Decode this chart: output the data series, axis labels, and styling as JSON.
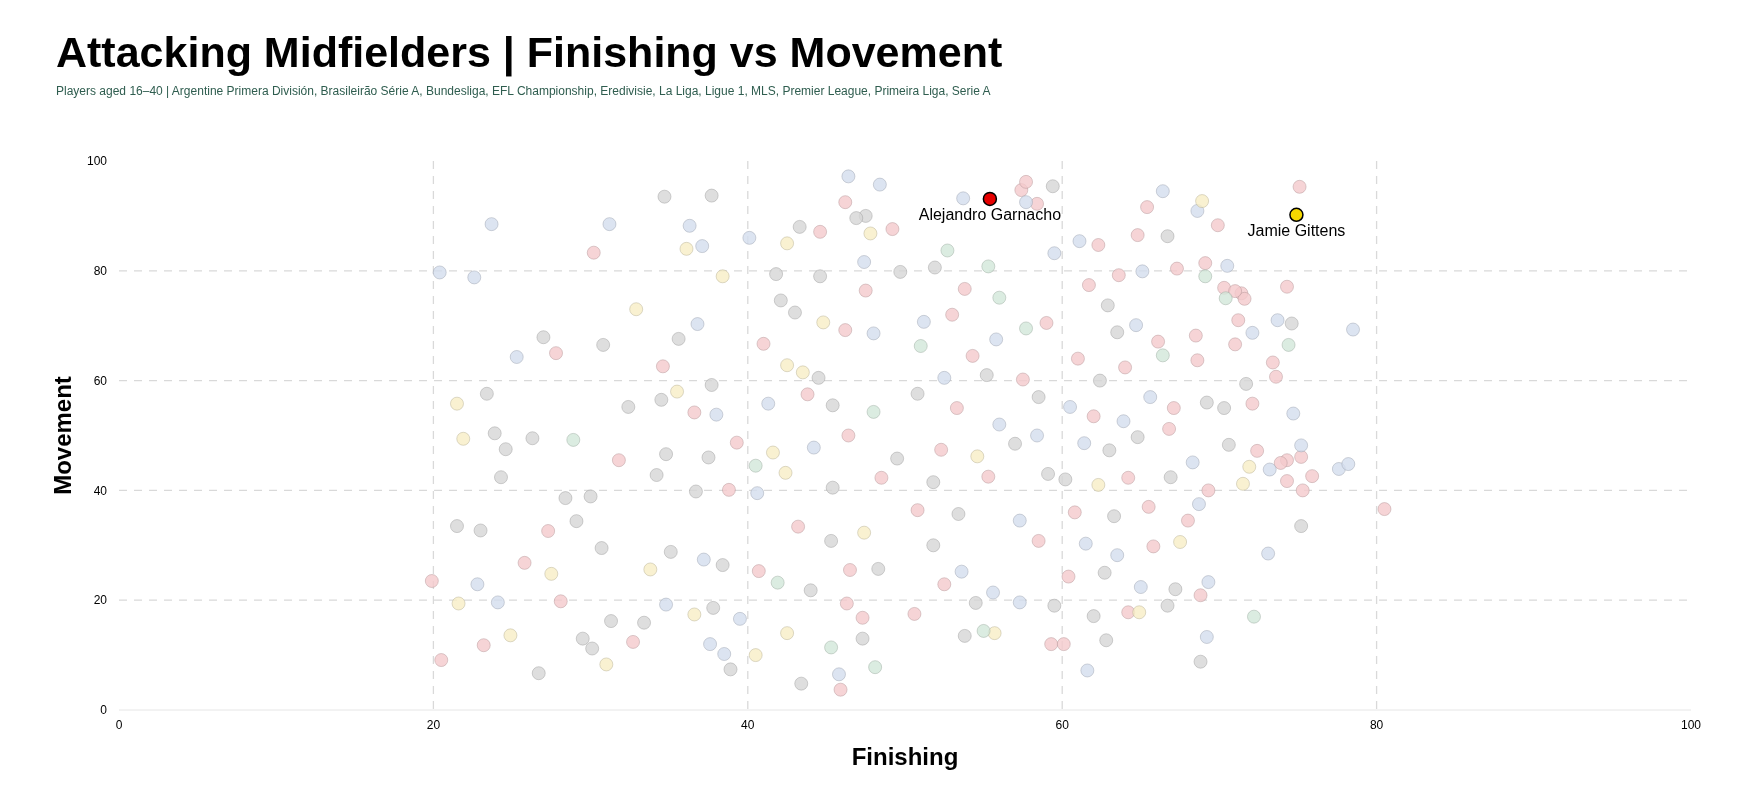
{
  "chart_data": {
    "type": "scatter",
    "title": "Attacking Midfielders | Finishing vs Movement",
    "subtitle": "Players aged 16–40 | Argentine Primera División, Brasileirão Série A, Bundesliga, EFL Championship, Eredivisie, La Liga, Ligue 1, MLS, Premier League, Primeira Liga, Serie A",
    "xlabel": "Finishing",
    "ylabel": "Movement",
    "xlim": [
      0,
      100
    ],
    "ylim": [
      0,
      100
    ],
    "xticks": [
      0,
      20,
      40,
      60,
      80,
      100
    ],
    "yticks": [
      0,
      20,
      40,
      60,
      80,
      100
    ],
    "grid": true,
    "marker": "circle",
    "series": [
      {
        "color": "#f4c9cc",
        "x": [
          27.8,
          19.9,
          20.5,
          23.2,
          28.1,
          25.8,
          27.3,
          30.2,
          31.8,
          32.7,
          34.6,
          36.6,
          39.3,
          38.8,
          44.6,
          46.2,
          49.2,
          41,
          46.2,
          47.5,
          43.8,
          46.4,
          48.5,
          43.2,
          46.5,
          40.7,
          46.3,
          45.9,
          47.3,
          57.4,
          57.7,
          58.4,
          53.8,
          53,
          59,
          54.3,
          57.5,
          53.3,
          52.3,
          55.3,
          50.8,
          58.5,
          52.5,
          50.6,
          59.3,
          62.3,
          64.8,
          65.4,
          63.6,
          61.7,
          67.3,
          70.3,
          66.1,
          68.5,
          61,
          64,
          68.6,
          62,
          67.1,
          66.8,
          64.2,
          69.3,
          60.8,
          65.5,
          68,
          65.8,
          60.4,
          64.2,
          68.8,
          60.1,
          75.1,
          69.9,
          74.3,
          71.4,
          71.6,
          71.2,
          71,
          69.1,
          71,
          73.4,
          73.6,
          72.1,
          72.4,
          74.3,
          75.2,
          73.9,
          74.3,
          75.9,
          80.5,
          75.3
        ],
        "values": [
          65,
          23.5,
          9.1,
          11.8,
          19.8,
          26.8,
          32.6,
          83.3,
          45.5,
          12.4,
          62.6,
          54.2,
          48.7,
          40.1,
          87.1,
          92.5,
          87.6,
          66.7,
          69.2,
          76.4,
          57.5,
          50,
          42.3,
          33.4,
          25.5,
          25.3,
          19.4,
          3.7,
          16.8,
          94.7,
          96.2,
          92.2,
          76.7,
          72,
          70.5,
          64.5,
          60.2,
          55,
          47.4,
          42.5,
          36.4,
          30.8,
          22.9,
          17.5,
          12,
          84.7,
          86.5,
          91.6,
          79.2,
          77.4,
          80.4,
          76.9,
          67.1,
          68.2,
          64,
          62.4,
          63.7,
          53.5,
          55,
          51.2,
          42.3,
          40,
          36,
          37,
          34.5,
          29.8,
          24.3,
          17.8,
          20.9,
          12,
          95.3,
          88.3,
          77.1,
          75.9,
          74.9,
          71,
          76.3,
          81.4,
          66.6,
          63.3,
          60.7,
          55.8,
          47.2,
          45.5,
          46.1,
          45,
          41.7,
          42.6,
          36.6,
          40
        ]
      },
      {
        "color": "#d3ddee",
        "x": [
          20.4,
          23.7,
          22.6,
          25.3,
          22.8,
          24.1,
          31.2,
          36.3,
          37.1,
          36.8,
          38,
          37.2,
          34.8,
          37.6,
          39.5,
          38.5,
          40.1,
          46.4,
          48.4,
          47.4,
          48,
          41.3,
          44.2,
          40.6,
          45.8,
          53.7,
          57.7,
          59.5,
          51.2,
          55.8,
          52.5,
          56,
          58.4,
          57.3,
          53.6,
          55.6,
          57.3,
          61.1,
          66.4,
          65.1,
          64.7,
          60.5,
          63.9,
          65.6,
          61.4,
          68.3,
          61.5,
          63.5,
          65,
          69.3,
          69.2,
          61.6,
          68.6,
          73.7,
          72.1,
          70.5,
          74.7,
          73.2,
          75.2,
          77.6,
          78.2,
          78.5,
          73.1,
          68.7
        ],
        "values": [
          79.7,
          88.5,
          78.8,
          64.3,
          22.9,
          19.6,
          88.5,
          88.2,
          84.5,
          70.3,
          53.8,
          27.4,
          19.2,
          12,
          16.6,
          10.2,
          86,
          97.2,
          95.7,
          81.6,
          68.6,
          55.8,
          47.8,
          39.5,
          6.5,
          93.2,
          92.5,
          83.2,
          70.7,
          67.5,
          60.5,
          52,
          50,
          34.5,
          25.2,
          21.4,
          19.6,
          85.4,
          94.5,
          79.9,
          70.1,
          55.2,
          52.6,
          57,
          48.6,
          45.1,
          30.3,
          28.2,
          22.4,
          23.3,
          13.3,
          7.2,
          90.9,
          71,
          68.7,
          80.9,
          54,
          43.8,
          48.2,
          43.9,
          44.8,
          69.3,
          28.5,
          37.5
        ]
      },
      {
        "color": "#d6d6d6",
        "x": [
          23.4,
          27,
          24.3,
          23.9,
          24.6,
          26.3,
          21.5,
          23,
          26.7,
          29.1,
          30,
          28.4,
          29.5,
          30.1,
          30.8,
          32.4,
          30.7,
          31.3,
          33.4,
          34.7,
          37.7,
          35.6,
          34.5,
          37.7,
          34.8,
          37.5,
          34.2,
          36.7,
          35.1,
          37.8,
          38.4,
          38.9,
          43.3,
          47.5,
          46.9,
          44.6,
          41.8,
          42.1,
          43,
          44.5,
          49.7,
          45.4,
          45.4,
          49.5,
          45.3,
          48.3,
          44,
          47.3,
          43.4,
          59.4,
          51.9,
          55.2,
          58.5,
          50.8,
          57,
          59.1,
          51.8,
          53.4,
          51.8,
          54.5,
          59.5,
          53.8,
          66.7,
          62.9,
          63.5,
          62.4,
          69.2,
          63,
          64.8,
          60.2,
          66.9,
          63.3,
          62.7,
          67.2,
          62,
          66.7,
          62.8,
          68.8,
          74.6,
          71.7,
          70.3,
          70.6,
          75.2
        ],
        "values": [
          57.6,
          67.9,
          42.4,
          50.4,
          47.5,
          49.5,
          33.5,
          32.7,
          6.7,
          34.4,
          38.9,
          38.6,
          13,
          11.2,
          66.5,
          55.2,
          29.5,
          16.2,
          15.9,
          93.5,
          93.7,
          67.6,
          56.5,
          59.2,
          46.6,
          46,
          42.8,
          39.8,
          28.8,
          18.6,
          26.4,
          7.4,
          88,
          90,
          89.6,
          79,
          79.4,
          74.6,
          72.4,
          60.5,
          79.8,
          55.5,
          40.5,
          45.8,
          30.8,
          25.7,
          21.8,
          13,
          4.8,
          95.4,
          80.6,
          61,
          57,
          57.6,
          48.5,
          43,
          41.5,
          35.7,
          30,
          19.5,
          19,
          13.5,
          86.3,
          73.7,
          68.8,
          60,
          56,
          47.3,
          49.7,
          42,
          42.4,
          35.3,
          25,
          22,
          17.1,
          19,
          12.7,
          8.8,
          70.4,
          59.4,
          55,
          48.3,
          33.5
        ]
      },
      {
        "color": "#f7eec6",
        "x": [
          21.5,
          21.9,
          21.6,
          24.9,
          27.5,
          31,
          32.9,
          33.8,
          36.1,
          38.4,
          35.5,
          36.6,
          42.5,
          47.8,
          44.8,
          42.5,
          43.5,
          41.6,
          42.4,
          47.4,
          42.5,
          40.5,
          54.6,
          55.7,
          68.9,
          62.3,
          67.5,
          64.9,
          71.9,
          71.5
        ],
        "values": [
          55.8,
          49.4,
          19.4,
          13.6,
          24.8,
          8.3,
          73,
          25.6,
          84,
          79,
          58,
          17.4,
          85,
          86.8,
          70.6,
          62.8,
          61.5,
          46.9,
          43.2,
          32.3,
          14,
          10,
          46.2,
          14,
          92.7,
          41,
          30.6,
          17.8,
          44.3,
          41.2
        ]
      },
      {
        "color": "#d2e7da",
        "x": [
          28.9,
          48,
          40.5,
          41.9,
          45.3,
          48.1,
          52.7,
          55.3,
          56,
          57.7,
          51,
          55,
          66.4,
          69.1,
          70.4,
          74.4,
          72.2
        ],
        "values": [
          49.2,
          54.3,
          44.5,
          23.2,
          11.4,
          7.8,
          83.7,
          80.8,
          75.1,
          69.5,
          66.3,
          14.4,
          64.6,
          79,
          75,
          66.5,
          17
        ]
      },
      {
        "name": "Alejandro Garnacho",
        "color": "#e60000",
        "x": [
          55.4
        ],
        "values": [
          93.1
        ]
      },
      {
        "name": "Jamie Gittens",
        "color": "#f5d800",
        "x": [
          74.9
        ],
        "values": [
          90.2
        ]
      }
    ]
  }
}
